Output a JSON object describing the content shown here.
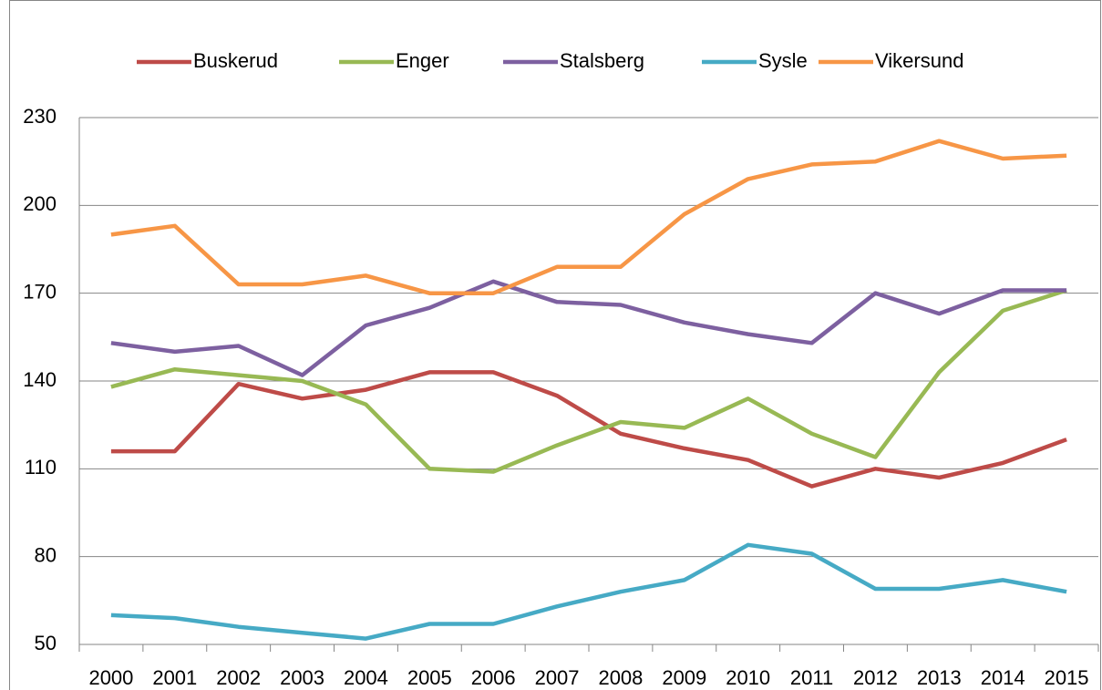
{
  "chart_data": {
    "type": "line",
    "categories": [
      "2000",
      "2001",
      "2002",
      "2003",
      "2004",
      "2005",
      "2006",
      "2007",
      "2008",
      "2009",
      "2010",
      "2011",
      "2012",
      "2013",
      "2014",
      "2015"
    ],
    "series": [
      {
        "name": "Buskerud",
        "color": "#be4b48",
        "values": [
          116,
          116,
          139,
          134,
          137,
          143,
          143,
          135,
          122,
          117,
          113,
          104,
          110,
          107,
          112,
          120
        ]
      },
      {
        "name": "Enger",
        "color": "#98b954",
        "values": [
          138,
          144,
          142,
          140,
          132,
          110,
          109,
          118,
          126,
          124,
          134,
          122,
          114,
          143,
          164,
          171
        ]
      },
      {
        "name": "Stalsberg",
        "color": "#7d60a0",
        "values": [
          153,
          150,
          152,
          142,
          159,
          165,
          174,
          167,
          166,
          160,
          156,
          153,
          170,
          163,
          171,
          171
        ]
      },
      {
        "name": "Sysle",
        "color": "#46aac5",
        "values": [
          60,
          59,
          56,
          54,
          52,
          57,
          57,
          63,
          68,
          72,
          84,
          81,
          69,
          69,
          72,
          68
        ]
      },
      {
        "name": "Vikersund",
        "color": "#f79646",
        "values": [
          190,
          193,
          173,
          173,
          176,
          170,
          170,
          179,
          179,
          197,
          209,
          214,
          215,
          222,
          216,
          217
        ]
      }
    ],
    "ylim": [
      50,
      230
    ],
    "yticks": [
      50,
      80,
      110,
      140,
      170,
      200,
      230
    ],
    "grid": true,
    "legend": "top"
  }
}
